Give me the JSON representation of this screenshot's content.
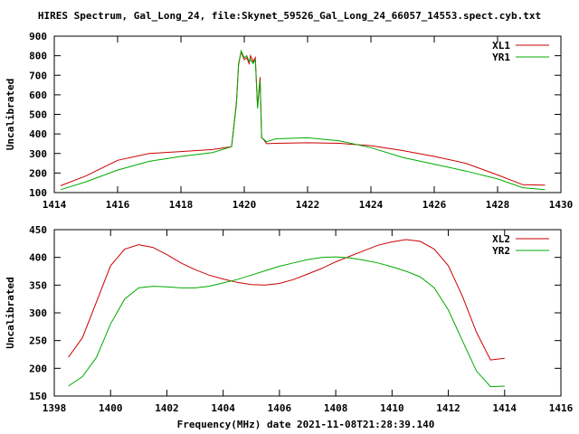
{
  "page": {
    "title": "HIRES Spectrum, Gal_Long_24, file:Skynet_59526_Gal_Long_24_66057_14553.spect.cyb.txt",
    "xlabel": "Frequency(MHz) date 2021-11-08T21:28:39.140"
  },
  "colors": {
    "red": "#cc0000",
    "green": "#00aa00",
    "grid": "#000000"
  },
  "chart_data": [
    {
      "type": "line",
      "ylabel": "Uncalibrated",
      "xlim": [
        1414,
        1430
      ],
      "ylim": [
        100,
        900
      ],
      "xticks": [
        1414,
        1416,
        1418,
        1420,
        1422,
        1424,
        1426,
        1428,
        1430
      ],
      "yticks": [
        100,
        200,
        300,
        400,
        500,
        600,
        700,
        800,
        900
      ],
      "legend_position": "top-right",
      "series": [
        {
          "name": "XL1",
          "color": "#cc0000",
          "x": [
            1414.2,
            1415,
            1416,
            1417,
            1418,
            1419,
            1419.6,
            1419.75,
            1419.82,
            1419.9,
            1420.0,
            1420.08,
            1420.15,
            1420.2,
            1420.28,
            1420.35,
            1420.42,
            1420.5,
            1420.55,
            1420.62,
            1420.7,
            1421,
            1422,
            1423,
            1424,
            1425,
            1426,
            1427,
            1428,
            1428.8,
            1429.5
          ],
          "y": [
            135,
            185,
            265,
            300,
            310,
            320,
            335,
            560,
            760,
            820,
            780,
            790,
            760,
            800,
            770,
            790,
            540,
            690,
            380,
            370,
            350,
            352,
            355,
            352,
            340,
            315,
            285,
            250,
            190,
            140,
            138
          ]
        },
        {
          "name": "YR1",
          "color": "#00aa00",
          "x": [
            1414.2,
            1415,
            1416,
            1417,
            1418,
            1419,
            1419.6,
            1419.75,
            1419.82,
            1419.9,
            1420.0,
            1420.08,
            1420.15,
            1420.2,
            1420.28,
            1420.35,
            1420.42,
            1420.5,
            1420.55,
            1420.62,
            1420.7,
            1421,
            1422,
            1423,
            1424,
            1425,
            1426,
            1427,
            1428,
            1428.8,
            1429.5
          ],
          "y": [
            115,
            155,
            215,
            260,
            285,
            305,
            335,
            550,
            750,
            825,
            790,
            800,
            770,
            780,
            760,
            780,
            530,
            670,
            380,
            372,
            360,
            375,
            380,
            365,
            330,
            280,
            245,
            210,
            170,
            125,
            115
          ]
        }
      ]
    },
    {
      "type": "line",
      "ylabel": "Uncalibrated",
      "xlim": [
        1398,
        1416
      ],
      "ylim": [
        150,
        450
      ],
      "xticks": [
        1398,
        1400,
        1402,
        1404,
        1406,
        1408,
        1410,
        1412,
        1414,
        1416
      ],
      "yticks": [
        150,
        200,
        250,
        300,
        350,
        400,
        450
      ],
      "legend_position": "top-right",
      "series": [
        {
          "name": "XL2",
          "color": "#cc0000",
          "x": [
            1398.5,
            1399,
            1399.5,
            1400,
            1400.5,
            1401,
            1401.5,
            1402,
            1402.5,
            1403,
            1403.5,
            1404,
            1404.5,
            1405,
            1405.5,
            1406,
            1406.5,
            1407,
            1407.5,
            1408,
            1408.5,
            1409,
            1409.5,
            1410,
            1410.5,
            1411,
            1411.5,
            1412,
            1412.5,
            1413,
            1413.5,
            1414
          ],
          "y": [
            220,
            255,
            320,
            385,
            415,
            423,
            418,
            405,
            390,
            378,
            368,
            361,
            355,
            351,
            350,
            353,
            360,
            370,
            380,
            392,
            402,
            412,
            422,
            428,
            432,
            429,
            415,
            385,
            330,
            265,
            215,
            218
          ]
        },
        {
          "name": "YR2",
          "color": "#00aa00",
          "x": [
            1398.5,
            1399,
            1399.5,
            1400,
            1400.5,
            1401,
            1401.5,
            1402,
            1402.5,
            1403,
            1403.5,
            1404,
            1404.5,
            1405,
            1405.5,
            1406,
            1406.5,
            1407,
            1407.5,
            1408,
            1408.5,
            1409,
            1409.5,
            1410,
            1410.5,
            1411,
            1411.5,
            1412,
            1412.5,
            1413,
            1413.5,
            1414
          ],
          "y": [
            168,
            185,
            220,
            280,
            325,
            345,
            348,
            347,
            345,
            345,
            348,
            354,
            360,
            368,
            376,
            384,
            390,
            396,
            400,
            401,
            399,
            395,
            390,
            383,
            375,
            365,
            345,
            305,
            250,
            195,
            167,
            168
          ]
        }
      ]
    }
  ]
}
